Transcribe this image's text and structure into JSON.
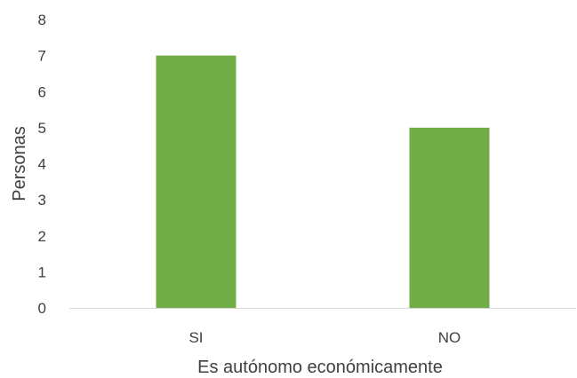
{
  "chart_data": {
    "type": "bar",
    "categories": [
      "SI",
      "NO"
    ],
    "values": [
      7,
      5
    ],
    "xlabel": "Es autónomo económicamente",
    "ylabel": "Personas",
    "ylim": [
      0,
      8
    ],
    "yticks": [
      0,
      1,
      2,
      3,
      4,
      5,
      6,
      7,
      8
    ],
    "grid": false,
    "legend": "none",
    "bar_color": "#70ad47",
    "axis_color": "#d9d9d9",
    "text_color": "#404040"
  }
}
